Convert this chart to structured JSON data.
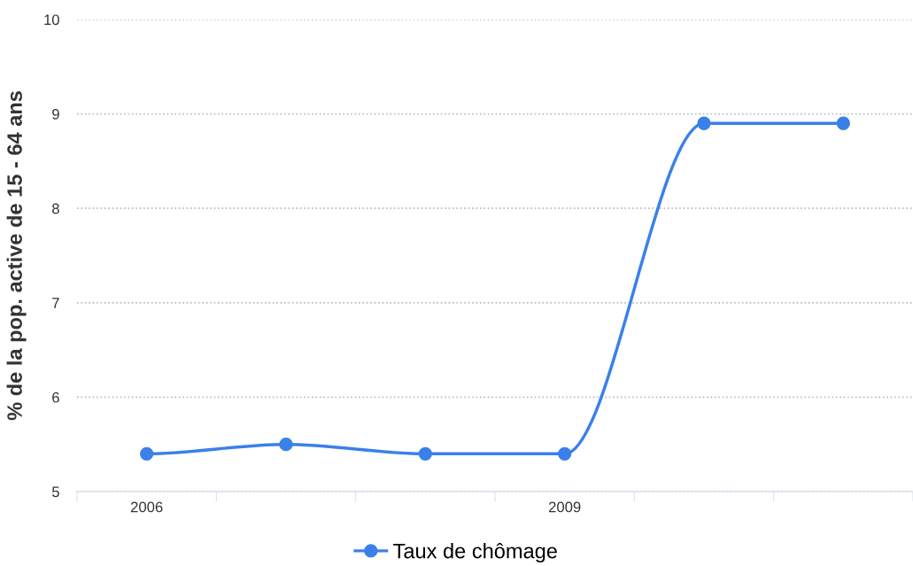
{
  "chart_data": {
    "type": "line",
    "ylabel": "% de la pop. active de 15 - 64 ans",
    "categories": [
      "2006",
      null,
      null,
      "2009",
      null,
      null
    ],
    "series": [
      {
        "name": "Taux de chômage",
        "color": "#3a80ea",
        "values": [
          5.4,
          5.5,
          5.4,
          5.4,
          8.9,
          8.9
        ]
      }
    ],
    "ylim": [
      5,
      10
    ],
    "yticks": [
      5,
      6,
      7,
      8,
      9,
      10
    ],
    "grid": "y",
    "legend": "bottom",
    "marker": "circle",
    "line_style": "solid"
  }
}
